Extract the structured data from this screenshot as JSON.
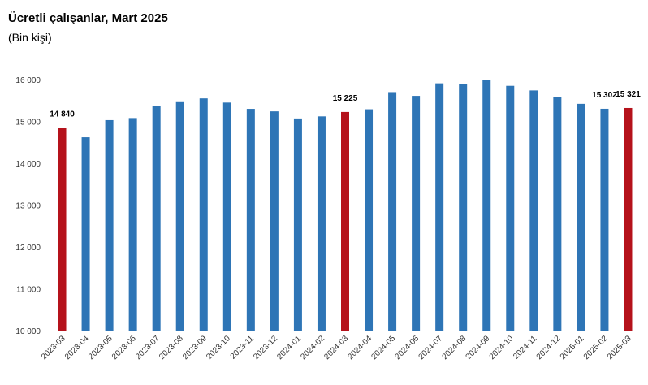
{
  "chart_data": {
    "type": "bar",
    "title": "Ücretli çalışanlar, Mart 2025",
    "subtitle": "(Bin kişi)",
    "xlabel": "",
    "ylabel": "",
    "ylim": [
      10000,
      16000
    ],
    "yticks": [
      10000,
      11000,
      12000,
      13000,
      14000,
      15000,
      16000
    ],
    "ytick_labels": [
      "10 000",
      "11 000",
      "12 000",
      "13 000",
      "14 000",
      "15 000",
      "16 000"
    ],
    "categories": [
      "2023-03",
      "2023-04",
      "2023-05",
      "2023-06",
      "2023-07",
      "2023-08",
      "2023-09",
      "2023-10",
      "2023-11",
      "2023-12",
      "2024-01",
      "2024-02",
      "2024-03",
      "2024-04",
      "2024-05",
      "2024-06",
      "2024-07",
      "2024-08",
      "2024-09",
      "2024-10",
      "2024-11",
      "2024-12",
      "2025-01",
      "2025-02",
      "2025-03"
    ],
    "values": [
      14840,
      14620,
      15030,
      15080,
      15370,
      15480,
      15550,
      15450,
      15300,
      15240,
      15070,
      15120,
      15225,
      15290,
      15700,
      15610,
      15910,
      15900,
      15990,
      15850,
      15740,
      15580,
      15420,
      15302,
      15321
    ],
    "highlighted": [
      "2023-03",
      "2024-03",
      "2025-03"
    ],
    "data_labels": [
      {
        "category": "2023-03",
        "text": "14 840"
      },
      {
        "category": "2024-03",
        "text": "15 225"
      },
      {
        "category": "2025-02",
        "text": "15 302"
      },
      {
        "category": "2025-03",
        "text": "15 321"
      }
    ],
    "colors": {
      "bar": "#2e75b6",
      "highlight": "#b5121b",
      "axis": "#d9d9d9"
    },
    "grid": false,
    "legend": "none"
  }
}
